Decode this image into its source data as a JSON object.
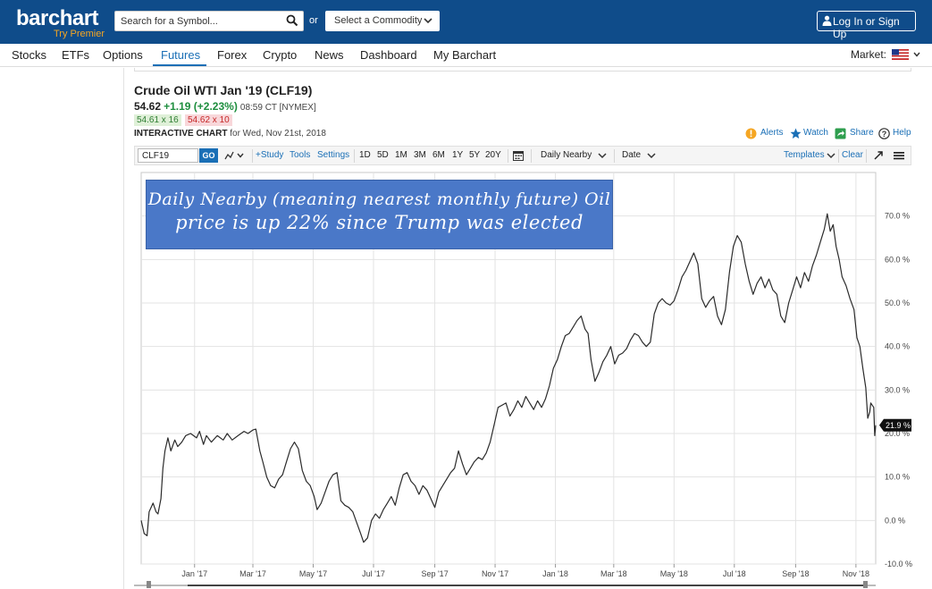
{
  "header": {
    "logo_text": "barchart",
    "logo_sub": "Try Premier",
    "search_placeholder": "Search for a Symbol...",
    "or_text": "or",
    "commodity_label": "Select a Commodity",
    "login_label": "Log In or Sign Up"
  },
  "nav": {
    "items": [
      "Stocks",
      "ETFs",
      "Options",
      "Futures",
      "Forex",
      "Crypto",
      "News",
      "Dashboard",
      "My Barchart"
    ],
    "active": "Futures",
    "market_label": "Market:"
  },
  "quote": {
    "title": "Crude Oil WTI Jan '19 (CLF19)",
    "price": "54.62",
    "change": "+1.19 (+2.23%)",
    "time": "08:59 CT [NYMEX]",
    "bid": "54.61 x 16",
    "ask": "54.62 x 10",
    "interactive_label": "INTERACTIVE CHART",
    "interactive_date": "for Wed, Nov 21st, 2018"
  },
  "actions": {
    "alerts": "Alerts",
    "watch": "Watch",
    "share": "Share",
    "help": "Help"
  },
  "toolbar": {
    "symbol": "CLF19",
    "go": "GO",
    "study": "+Study",
    "tools": "Tools",
    "settings": "Settings",
    "periods": [
      "1D",
      "5D",
      "1M",
      "3M",
      "6M",
      "1Y",
      "5Y",
      "20Y"
    ],
    "aggregation": "Daily Nearby",
    "date": "Date",
    "templates": "Templates",
    "clear": "Clear"
  },
  "annotation": {
    "line1": "Daily Nearby (meaning nearest monthly future) Oil",
    "line2": "price is up 22% since Trump was elected"
  },
  "colors": {
    "header_bg": "#0f4c8a",
    "accent": "#1a6fb6",
    "up": "#1e8e3e",
    "down": "#c62828",
    "annotation_bg": "#4a78c8"
  },
  "chart_data": {
    "type": "line",
    "title": "",
    "xlabel": "",
    "ylabel": "",
    "y_unit": "%",
    "ylim": [
      -10,
      80
    ],
    "x_range": [
      "2016-11-08",
      "2018-11-21"
    ],
    "y_ticks": [
      -10,
      0,
      10,
      20,
      30,
      40,
      50,
      60,
      70
    ],
    "y_tick_labels": [
      "-10.0 %",
      "0.0 %",
      "10.0 %",
      "20.0 %",
      "30.0 %",
      "40.0 %",
      "50.0 %",
      "60.0 %",
      "70.0 %"
    ],
    "x_tick_labels": [
      "Jan '17",
      "Mar '17",
      "May '17",
      "Jul '17",
      "Sep '17",
      "Nov '17",
      "Jan '18",
      "Mar '18",
      "May '18",
      "Jul '18",
      "Sep '18",
      "Nov '18"
    ],
    "x_tick_dates": [
      "2017-01-01",
      "2017-03-01",
      "2017-05-01",
      "2017-07-01",
      "2017-09-01",
      "2017-11-01",
      "2018-01-01",
      "2018-03-01",
      "2018-05-01",
      "2018-07-01",
      "2018-09-01",
      "2018-11-01"
    ],
    "last_value_label": "21.9 %",
    "grid": true,
    "series": [
      {
        "points": [
          [
            "2016-11-08",
            0.0
          ],
          [
            "2016-11-11",
            -3.0
          ],
          [
            "2016-11-14",
            -3.5
          ],
          [
            "2016-11-16",
            2.0
          ],
          [
            "2016-11-20",
            4.0
          ],
          [
            "2016-11-23",
            2.0
          ],
          [
            "2016-11-25",
            1.5
          ],
          [
            "2016-11-28",
            5.0
          ],
          [
            "2016-11-30",
            12.0
          ],
          [
            "2016-12-02",
            16.0
          ],
          [
            "2016-12-05",
            19.0
          ],
          [
            "2016-12-08",
            16.0
          ],
          [
            "2016-12-12",
            18.5
          ],
          [
            "2016-12-15",
            17.0
          ],
          [
            "2016-12-19",
            18.0
          ],
          [
            "2016-12-23",
            19.5
          ],
          [
            "2016-12-28",
            20.0
          ],
          [
            "2017-01-03",
            19.0
          ],
          [
            "2017-01-06",
            20.5
          ],
          [
            "2017-01-10",
            17.5
          ],
          [
            "2017-01-13",
            19.5
          ],
          [
            "2017-01-18",
            18.0
          ],
          [
            "2017-01-24",
            19.5
          ],
          [
            "2017-01-30",
            18.5
          ],
          [
            "2017-02-03",
            20.0
          ],
          [
            "2017-02-08",
            18.5
          ],
          [
            "2017-02-14",
            19.5
          ],
          [
            "2017-02-20",
            20.5
          ],
          [
            "2017-02-24",
            20.0
          ],
          [
            "2017-03-01",
            20.8
          ],
          [
            "2017-03-04",
            21.0
          ],
          [
            "2017-03-08",
            16.0
          ],
          [
            "2017-03-11",
            13.5
          ],
          [
            "2017-03-15",
            10.0
          ],
          [
            "2017-03-19",
            8.0
          ],
          [
            "2017-03-23",
            7.5
          ],
          [
            "2017-03-27",
            9.5
          ],
          [
            "2017-03-31",
            10.5
          ],
          [
            "2017-04-04",
            13.5
          ],
          [
            "2017-04-08",
            16.5
          ],
          [
            "2017-04-12",
            18.0
          ],
          [
            "2017-04-16",
            16.5
          ],
          [
            "2017-04-20",
            11.5
          ],
          [
            "2017-04-24",
            9.0
          ],
          [
            "2017-04-28",
            8.0
          ],
          [
            "2017-05-02",
            5.5
          ],
          [
            "2017-05-05",
            2.5
          ],
          [
            "2017-05-09",
            4.0
          ],
          [
            "2017-05-13",
            6.5
          ],
          [
            "2017-05-17",
            9.0
          ],
          [
            "2017-05-21",
            10.5
          ],
          [
            "2017-05-25",
            11.0
          ],
          [
            "2017-05-29",
            4.5
          ],
          [
            "2017-06-02",
            3.5
          ],
          [
            "2017-06-06",
            3.0
          ],
          [
            "2017-06-10",
            2.0
          ],
          [
            "2017-06-14",
            -0.5
          ],
          [
            "2017-06-18",
            -3.0
          ],
          [
            "2017-06-21",
            -5.0
          ],
          [
            "2017-06-25",
            -4.0
          ],
          [
            "2017-06-29",
            0.0
          ],
          [
            "2017-07-03",
            1.5
          ],
          [
            "2017-07-07",
            0.5
          ],
          [
            "2017-07-11",
            2.5
          ],
          [
            "2017-07-15",
            4.0
          ],
          [
            "2017-07-19",
            5.5
          ],
          [
            "2017-07-23",
            3.5
          ],
          [
            "2017-07-27",
            7.5
          ],
          [
            "2017-07-31",
            10.5
          ],
          [
            "2017-08-04",
            11.0
          ],
          [
            "2017-08-08",
            9.0
          ],
          [
            "2017-08-12",
            8.0
          ],
          [
            "2017-08-16",
            6.0
          ],
          [
            "2017-08-20",
            8.0
          ],
          [
            "2017-08-24",
            7.0
          ],
          [
            "2017-08-28",
            5.0
          ],
          [
            "2017-09-01",
            3.0
          ],
          [
            "2017-09-05",
            6.5
          ],
          [
            "2017-09-09",
            8.0
          ],
          [
            "2017-09-13",
            9.5
          ],
          [
            "2017-09-17",
            11.0
          ],
          [
            "2017-09-21",
            12.0
          ],
          [
            "2017-09-25",
            16.0
          ],
          [
            "2017-09-29",
            13.0
          ],
          [
            "2017-10-03",
            10.5
          ],
          [
            "2017-10-07",
            12.0
          ],
          [
            "2017-10-11",
            13.5
          ],
          [
            "2017-10-15",
            14.5
          ],
          [
            "2017-10-19",
            14.0
          ],
          [
            "2017-10-23",
            15.5
          ],
          [
            "2017-10-27",
            18.0
          ],
          [
            "2017-10-31",
            22.0
          ],
          [
            "2017-11-04",
            26.0
          ],
          [
            "2017-11-08",
            26.5
          ],
          [
            "2017-11-12",
            27.0
          ],
          [
            "2017-11-16",
            24.0
          ],
          [
            "2017-11-20",
            25.5
          ],
          [
            "2017-11-24",
            27.5
          ],
          [
            "2017-11-28",
            26.0
          ],
          [
            "2017-12-02",
            28.5
          ],
          [
            "2017-12-06",
            27.0
          ],
          [
            "2017-12-10",
            25.5
          ],
          [
            "2017-12-14",
            27.5
          ],
          [
            "2017-12-18",
            26.0
          ],
          [
            "2017-12-22",
            28.0
          ],
          [
            "2017-12-26",
            31.0
          ],
          [
            "2017-12-30",
            35.0
          ],
          [
            "2018-01-03",
            37.0
          ],
          [
            "2018-01-07",
            40.0
          ],
          [
            "2018-01-11",
            42.5
          ],
          [
            "2018-01-15",
            43.0
          ],
          [
            "2018-01-19",
            44.5
          ],
          [
            "2018-01-23",
            46.0
          ],
          [
            "2018-01-27",
            47.0
          ],
          [
            "2018-01-31",
            44.0
          ],
          [
            "2018-02-03",
            43.0
          ],
          [
            "2018-02-06",
            37.0
          ],
          [
            "2018-02-10",
            32.0
          ],
          [
            "2018-02-14",
            34.0
          ],
          [
            "2018-02-18",
            36.5
          ],
          [
            "2018-02-22",
            38.0
          ],
          [
            "2018-02-26",
            40.0
          ],
          [
            "2018-03-02",
            36.0
          ],
          [
            "2018-03-06",
            38.0
          ],
          [
            "2018-03-10",
            38.5
          ],
          [
            "2018-03-14",
            39.5
          ],
          [
            "2018-03-18",
            41.5
          ],
          [
            "2018-03-22",
            43.0
          ],
          [
            "2018-03-26",
            42.5
          ],
          [
            "2018-03-30",
            41.0
          ],
          [
            "2018-04-03",
            40.0
          ],
          [
            "2018-04-07",
            41.0
          ],
          [
            "2018-04-11",
            47.5
          ],
          [
            "2018-04-15",
            50.0
          ],
          [
            "2018-04-19",
            51.0
          ],
          [
            "2018-04-23",
            50.0
          ],
          [
            "2018-04-27",
            49.5
          ],
          [
            "2018-05-01",
            50.5
          ],
          [
            "2018-05-05",
            53.0
          ],
          [
            "2018-05-09",
            56.0
          ],
          [
            "2018-05-13",
            57.5
          ],
          [
            "2018-05-17",
            59.5
          ],
          [
            "2018-05-21",
            61.5
          ],
          [
            "2018-05-25",
            59.0
          ],
          [
            "2018-05-29",
            51.0
          ],
          [
            "2018-06-02",
            49.0
          ],
          [
            "2018-06-06",
            50.5
          ],
          [
            "2018-06-10",
            51.5
          ],
          [
            "2018-06-14",
            47.0
          ],
          [
            "2018-06-18",
            45.0
          ],
          [
            "2018-06-22",
            48.5
          ],
          [
            "2018-06-26",
            57.0
          ],
          [
            "2018-06-30",
            63.0
          ],
          [
            "2018-07-04",
            65.5
          ],
          [
            "2018-07-08",
            64.0
          ],
          [
            "2018-07-12",
            59.0
          ],
          [
            "2018-07-16",
            55.0
          ],
          [
            "2018-07-20",
            52.0
          ],
          [
            "2018-07-24",
            54.5
          ],
          [
            "2018-07-28",
            56.0
          ],
          [
            "2018-08-01",
            53.5
          ],
          [
            "2018-08-05",
            55.5
          ],
          [
            "2018-08-09",
            53.0
          ],
          [
            "2018-08-13",
            52.0
          ],
          [
            "2018-08-17",
            47.0
          ],
          [
            "2018-08-21",
            45.5
          ],
          [
            "2018-08-25",
            50.0
          ],
          [
            "2018-08-29",
            53.0
          ],
          [
            "2018-09-02",
            56.0
          ],
          [
            "2018-09-06",
            53.5
          ],
          [
            "2018-09-10",
            57.0
          ],
          [
            "2018-09-14",
            55.0
          ],
          [
            "2018-09-18",
            58.5
          ],
          [
            "2018-09-22",
            61.0
          ],
          [
            "2018-09-26",
            64.0
          ],
          [
            "2018-09-30",
            67.0
          ],
          [
            "2018-10-03",
            70.5
          ],
          [
            "2018-10-06",
            66.5
          ],
          [
            "2018-10-09",
            68.0
          ],
          [
            "2018-10-12",
            63.0
          ],
          [
            "2018-10-15",
            60.0
          ],
          [
            "2018-10-18",
            56.0
          ],
          [
            "2018-10-22",
            54.0
          ],
          [
            "2018-10-26",
            51.0
          ],
          [
            "2018-10-30",
            48.5
          ],
          [
            "2018-11-02",
            42.0
          ],
          [
            "2018-11-05",
            40.0
          ],
          [
            "2018-11-08",
            35.0
          ],
          [
            "2018-11-11",
            30.5
          ],
          [
            "2018-11-13",
            23.5
          ],
          [
            "2018-11-15",
            25.0
          ],
          [
            "2018-11-16",
            27.0
          ],
          [
            "2018-11-19",
            26.0
          ],
          [
            "2018-11-20",
            19.5
          ],
          [
            "2018-11-21",
            21.9
          ]
        ]
      }
    ]
  }
}
